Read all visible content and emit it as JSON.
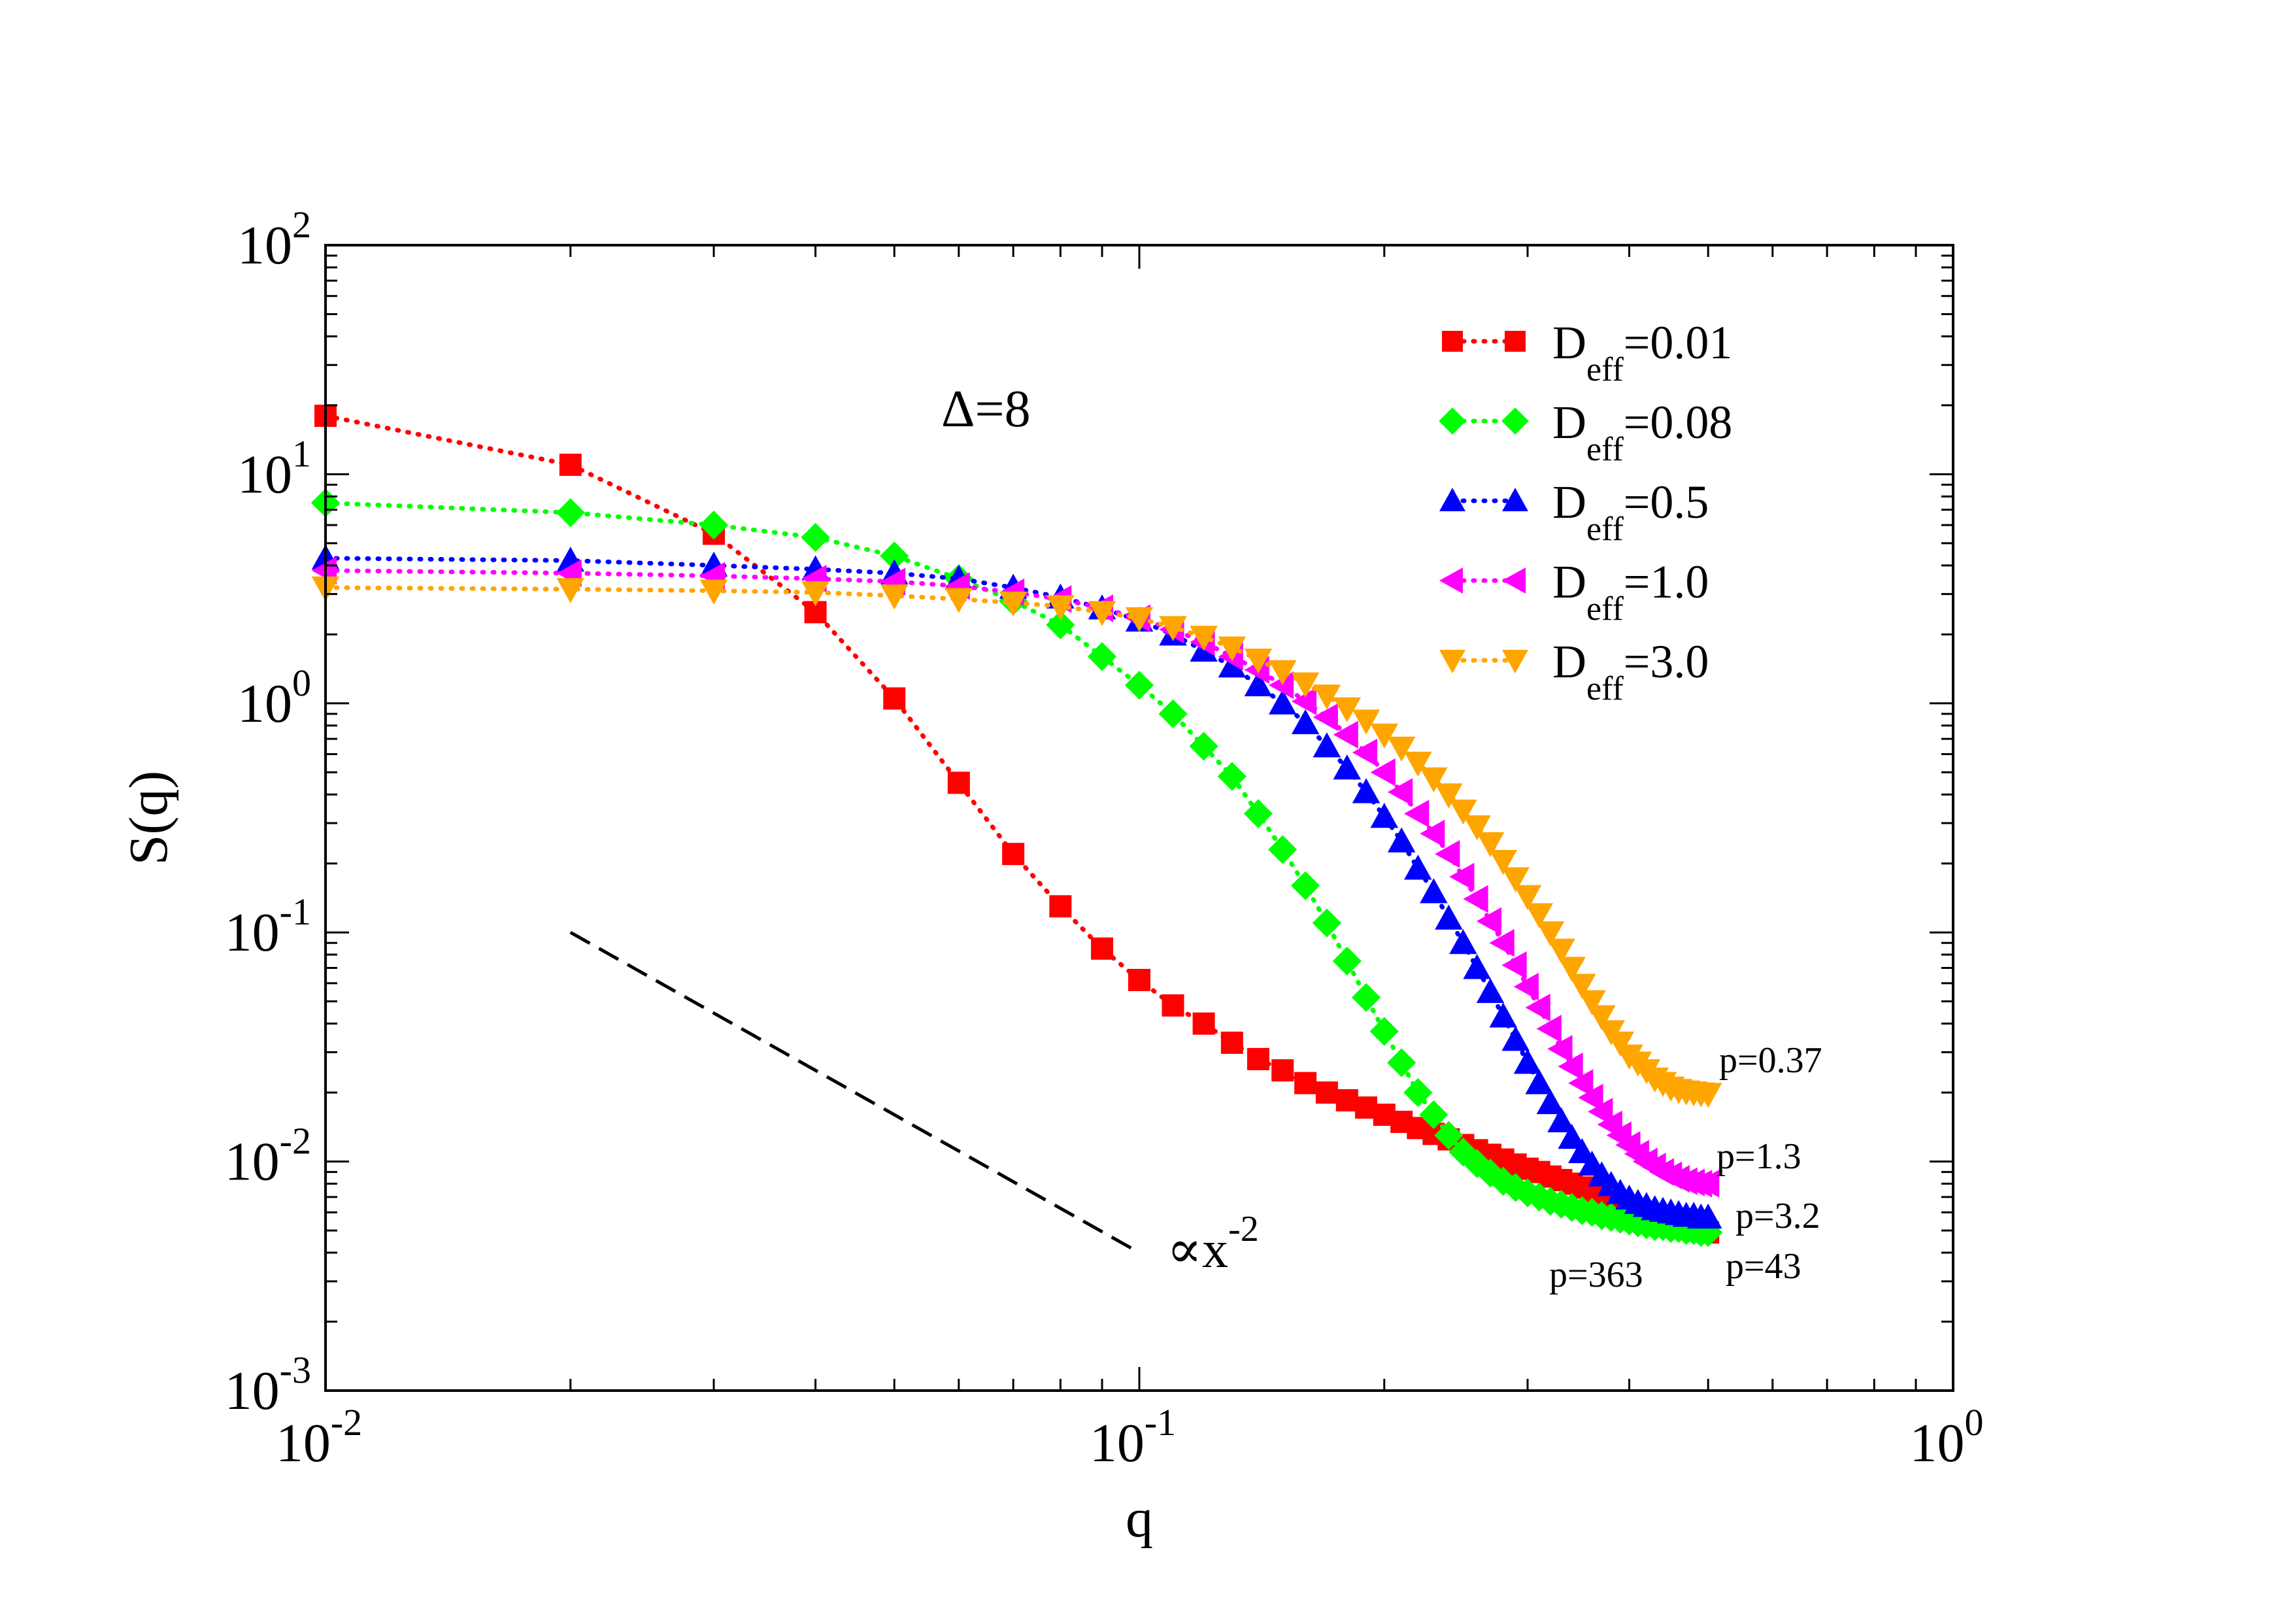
{
  "chart_data": {
    "type": "scatter",
    "title": "",
    "xlabel": "q",
    "ylabel": "S(q)",
    "xscale": "log",
    "yscale": "log",
    "xlim": [
      0.01,
      1
    ],
    "ylim": [
      0.001,
      100
    ],
    "x_ticks": [
      {
        "value": 0.01,
        "base": "10",
        "exp": "-2"
      },
      {
        "value": 0.1,
        "base": "10",
        "exp": "-1"
      },
      {
        "value": 1,
        "base": "10",
        "exp": "0"
      }
    ],
    "y_ticks": [
      {
        "value": 0.001,
        "base": "10",
        "exp": "-3"
      },
      {
        "value": 0.01,
        "base": "10",
        "exp": "-2"
      },
      {
        "value": 0.1,
        "base": "10",
        "exp": "-1"
      },
      {
        "value": 1,
        "base": "10",
        "exp": "0"
      },
      {
        "value": 10,
        "base": "10",
        "exp": "1"
      },
      {
        "value": 100,
        "base": "10",
        "exp": "2"
      }
    ],
    "legend_position": "top-right",
    "series": [
      {
        "name": "D_eff=0.01",
        "legend_main": "D",
        "legend_sub": "eff",
        "legend_tail": "=0.01",
        "color": "#ff0000",
        "marker": "square",
        "x": [
          0.01,
          0.02,
          0.03,
          0.04,
          0.05,
          0.06,
          0.07,
          0.08,
          0.09,
          0.1,
          0.11,
          0.12,
          0.13,
          0.14,
          0.15,
          0.16,
          0.17,
          0.18,
          0.19,
          0.2,
          0.21,
          0.22,
          0.23,
          0.24,
          0.25,
          0.26,
          0.27,
          0.28,
          0.29,
          0.3,
          0.31,
          0.32,
          0.33,
          0.34,
          0.35,
          0.36,
          0.37,
          0.38,
          0.39,
          0.4,
          0.41,
          0.42,
          0.43,
          0.44,
          0.45,
          0.46,
          0.47,
          0.48,
          0.49,
          0.5
        ],
        "y": [
          18,
          11,
          5.5,
          2.5,
          1.05,
          0.45,
          0.22,
          0.13,
          0.085,
          0.062,
          0.048,
          0.04,
          0.033,
          0.028,
          0.025,
          0.022,
          0.02,
          0.0185,
          0.0172,
          0.016,
          0.0149,
          0.014,
          0.0132,
          0.0125,
          0.0118,
          0.0112,
          0.0107,
          0.0102,
          0.0097,
          0.0093,
          0.009,
          0.0086,
          0.0083,
          0.008,
          0.0077,
          0.0074,
          0.0071,
          0.0068,
          0.0066,
          0.0064,
          0.0062,
          0.006,
          0.0058,
          0.0056,
          0.0054,
          0.0053,
          0.0052,
          0.0051,
          0.005,
          0.0049
        ]
      },
      {
        "name": "D_eff=0.08",
        "legend_main": "D",
        "legend_sub": "eff",
        "legend_tail": "=0.08",
        "color": "#00ff00",
        "marker": "diamond",
        "x": [
          0.01,
          0.02,
          0.03,
          0.04,
          0.05,
          0.06,
          0.07,
          0.08,
          0.09,
          0.1,
          0.11,
          0.12,
          0.13,
          0.14,
          0.15,
          0.16,
          0.17,
          0.18,
          0.19,
          0.2,
          0.21,
          0.22,
          0.23,
          0.24,
          0.25,
          0.26,
          0.27,
          0.28,
          0.29,
          0.3,
          0.31,
          0.32,
          0.33,
          0.34,
          0.35,
          0.36,
          0.37,
          0.38,
          0.39,
          0.4,
          0.41,
          0.42,
          0.43,
          0.44,
          0.45,
          0.46,
          0.47,
          0.48,
          0.49,
          0.5
        ],
        "y": [
          7.5,
          6.8,
          6,
          5.3,
          4.4,
          3.5,
          2.8,
          2.2,
          1.6,
          1.2,
          0.9,
          0.65,
          0.48,
          0.33,
          0.23,
          0.16,
          0.11,
          0.075,
          0.052,
          0.037,
          0.027,
          0.02,
          0.016,
          0.013,
          0.011,
          0.0098,
          0.0089,
          0.0082,
          0.0077,
          0.0073,
          0.007,
          0.0067,
          0.0065,
          0.0063,
          0.0061,
          0.006,
          0.0058,
          0.0057,
          0.0056,
          0.0055,
          0.0054,
          0.0053,
          0.0052,
          0.0052,
          0.0051,
          0.0051,
          0.005,
          0.005,
          0.0049,
          0.0049
        ]
      },
      {
        "name": "D_eff=0.5",
        "legend_main": "D",
        "legend_sub": "eff",
        "legend_tail": "=0.5",
        "color": "#0000ff",
        "marker": "triangle-up",
        "x": [
          0.01,
          0.02,
          0.03,
          0.04,
          0.05,
          0.06,
          0.07,
          0.08,
          0.09,
          0.1,
          0.11,
          0.12,
          0.13,
          0.14,
          0.15,
          0.16,
          0.17,
          0.18,
          0.19,
          0.2,
          0.21,
          0.22,
          0.23,
          0.24,
          0.25,
          0.26,
          0.27,
          0.28,
          0.29,
          0.3,
          0.31,
          0.32,
          0.33,
          0.34,
          0.35,
          0.36,
          0.37,
          0.38,
          0.39,
          0.4,
          0.41,
          0.42,
          0.43,
          0.44,
          0.45,
          0.46,
          0.47,
          0.48,
          0.49,
          0.5
        ],
        "y": [
          4.3,
          4.2,
          4,
          3.85,
          3.7,
          3.5,
          3.2,
          2.9,
          2.6,
          2.3,
          2,
          1.7,
          1.45,
          1.2,
          1,
          0.82,
          0.65,
          0.52,
          0.41,
          0.32,
          0.25,
          0.19,
          0.15,
          0.115,
          0.09,
          0.07,
          0.055,
          0.043,
          0.034,
          0.027,
          0.022,
          0.018,
          0.015,
          0.0127,
          0.011,
          0.0097,
          0.0087,
          0.0079,
          0.0073,
          0.0069,
          0.0066,
          0.0064,
          0.0062,
          0.0061,
          0.006,
          0.0059,
          0.0058,
          0.0058,
          0.0057,
          0.0057
        ]
      },
      {
        "name": "D_eff=1.0",
        "legend_main": "D",
        "legend_sub": "eff",
        "legend_tail": "=1.0",
        "color": "#ff00ff",
        "marker": "triangle-left",
        "x": [
          0.01,
          0.02,
          0.03,
          0.04,
          0.05,
          0.06,
          0.07,
          0.08,
          0.09,
          0.1,
          0.11,
          0.12,
          0.13,
          0.14,
          0.15,
          0.16,
          0.17,
          0.18,
          0.19,
          0.2,
          0.21,
          0.22,
          0.23,
          0.24,
          0.25,
          0.26,
          0.27,
          0.28,
          0.29,
          0.3,
          0.31,
          0.32,
          0.33,
          0.34,
          0.35,
          0.36,
          0.37,
          0.38,
          0.39,
          0.4,
          0.41,
          0.42,
          0.43,
          0.44,
          0.45,
          0.46,
          0.47,
          0.48,
          0.49,
          0.5
        ],
        "y": [
          3.8,
          3.7,
          3.6,
          3.5,
          3.4,
          3.25,
          3.05,
          2.85,
          2.6,
          2.35,
          2.1,
          1.85,
          1.6,
          1.4,
          1.2,
          1.02,
          0.87,
          0.73,
          0.61,
          0.5,
          0.41,
          0.33,
          0.27,
          0.22,
          0.175,
          0.14,
          0.112,
          0.09,
          0.072,
          0.058,
          0.047,
          0.038,
          0.031,
          0.026,
          0.022,
          0.019,
          0.0165,
          0.0145,
          0.013,
          0.0118,
          0.0108,
          0.01,
          0.0095,
          0.009,
          0.0087,
          0.0084,
          0.0082,
          0.0081,
          0.008,
          0.008
        ]
      },
      {
        "name": "D_eff=3.0",
        "legend_main": "D",
        "legend_sub": "eff",
        "legend_tail": "=3.0",
        "color": "#ffa500",
        "marker": "triangle-down",
        "x": [
          0.01,
          0.02,
          0.03,
          0.04,
          0.05,
          0.06,
          0.07,
          0.08,
          0.09,
          0.1,
          0.11,
          0.12,
          0.13,
          0.14,
          0.15,
          0.16,
          0.17,
          0.18,
          0.19,
          0.2,
          0.21,
          0.22,
          0.23,
          0.24,
          0.25,
          0.26,
          0.27,
          0.28,
          0.29,
          0.3,
          0.31,
          0.32,
          0.33,
          0.34,
          0.35,
          0.36,
          0.37,
          0.38,
          0.39,
          0.4,
          0.41,
          0.42,
          0.43,
          0.44,
          0.45,
          0.46,
          0.47,
          0.48,
          0.49,
          0.5
        ],
        "y": [
          3.2,
          3.15,
          3.1,
          3.05,
          2.95,
          2.85,
          2.75,
          2.65,
          2.5,
          2.35,
          2.15,
          1.95,
          1.75,
          1.55,
          1.38,
          1.22,
          1.08,
          0.95,
          0.84,
          0.73,
          0.64,
          0.55,
          0.47,
          0.4,
          0.34,
          0.29,
          0.245,
          0.205,
          0.172,
          0.144,
          0.12,
          0.1,
          0.084,
          0.07,
          0.059,
          0.05,
          0.043,
          0.037,
          0.033,
          0.029,
          0.027,
          0.025,
          0.023,
          0.022,
          0.021,
          0.0205,
          0.0202,
          0.02,
          0.0198,
          0.0197
        ]
      }
    ],
    "reference_line": {
      "x": [
        0.02,
        0.1
      ],
      "y": [
        0.1,
        0.004
      ],
      "style": "dashed",
      "color": "#000000",
      "label_main": "∝x",
      "label_exp": "-2"
    },
    "annotations": {
      "delta": "Δ=8",
      "p_labels": [
        "p=0.37",
        "p=1.3",
        "p=3.2",
        "p=43",
        "p=363"
      ]
    }
  }
}
